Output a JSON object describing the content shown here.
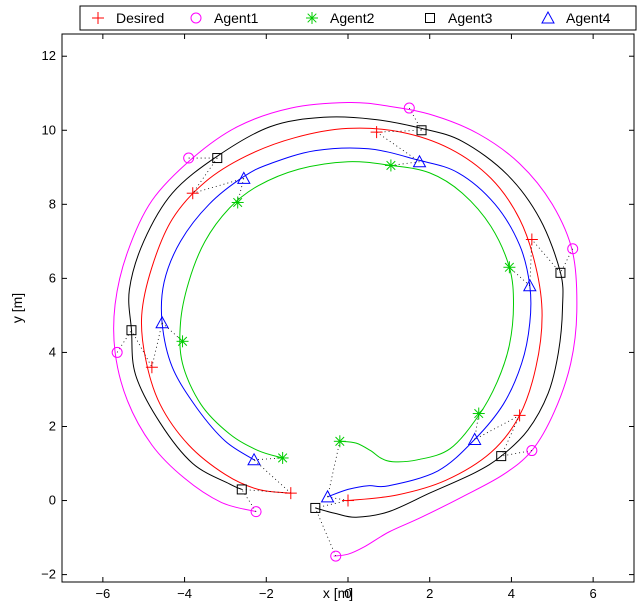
{
  "chart_data": {
    "type": "line",
    "xlabel": "x [m]",
    "ylabel": "y [m]",
    "xlim": [
      -7,
      7
    ],
    "ylim": [
      -2.2,
      12.6
    ],
    "xticks": [
      -6,
      -4,
      -2,
      0,
      2,
      4,
      6
    ],
    "yticks": [
      -2,
      0,
      2,
      4,
      6,
      8,
      10,
      12
    ],
    "grid": false,
    "legend_position": "top",
    "series": [
      {
        "name": "Desired",
        "color": "#ff0000",
        "marker": "plus",
        "path": [
          [
            0,
            0
          ],
          [
            1.2,
            0.15
          ],
          [
            2.4,
            0.55
          ],
          [
            3.5,
            1.3
          ],
          [
            4.2,
            2.3
          ],
          [
            4.6,
            3.6
          ],
          [
            4.75,
            5.0
          ],
          [
            4.6,
            6.3
          ],
          [
            4.2,
            7.6
          ],
          [
            3.5,
            8.7
          ],
          [
            2.5,
            9.5
          ],
          [
            1.3,
            9.95
          ],
          [
            0,
            10.05
          ],
          [
            -1.3,
            9.8
          ],
          [
            -2.5,
            9.3
          ],
          [
            -3.5,
            8.6
          ],
          [
            -4.3,
            7.6
          ],
          [
            -4.8,
            6.3
          ],
          [
            -5.05,
            5.0
          ],
          [
            -4.95,
            3.8
          ],
          [
            -4.6,
            2.6
          ],
          [
            -3.9,
            1.5
          ],
          [
            -3.0,
            0.7
          ],
          [
            -2.2,
            0.3
          ],
          [
            -1.4,
            0.2
          ]
        ],
        "markers": [
          [
            0,
            0
          ],
          [
            4.2,
            2.3
          ],
          [
            4.5,
            7.05
          ],
          [
            0.7,
            9.95
          ],
          [
            -3.8,
            8.3
          ],
          [
            -4.8,
            3.6
          ],
          [
            -1.4,
            0.2
          ]
        ]
      },
      {
        "name": "Agent1",
        "color": "#ff00ff",
        "marker": "circle",
        "path": [
          [
            -0.35,
            -1.5
          ],
          [
            0,
            -1.45
          ],
          [
            0.4,
            -1.25
          ],
          [
            1.0,
            -0.85
          ],
          [
            1.8,
            -0.45
          ],
          [
            2.8,
            0.1
          ],
          [
            3.8,
            0.7
          ],
          [
            4.5,
            1.35
          ],
          [
            5.05,
            2.4
          ],
          [
            5.45,
            3.7
          ],
          [
            5.6,
            5.1
          ],
          [
            5.5,
            6.7
          ],
          [
            5.0,
            8.0
          ],
          [
            4.2,
            9.1
          ],
          [
            3.2,
            9.9
          ],
          [
            2.1,
            10.4
          ],
          [
            1.0,
            10.65
          ],
          [
            0,
            10.75
          ],
          [
            -1.4,
            10.6
          ],
          [
            -2.7,
            10.1
          ],
          [
            -3.8,
            9.25
          ],
          [
            -4.8,
            8.1
          ],
          [
            -5.4,
            6.7
          ],
          [
            -5.7,
            5.3
          ],
          [
            -5.7,
            4.0
          ],
          [
            -5.4,
            2.7
          ],
          [
            -4.8,
            1.5
          ],
          [
            -4.0,
            0.6
          ],
          [
            -3.1,
            -0.05
          ],
          [
            -2.25,
            -0.3
          ]
        ],
        "markers": [
          [
            -0.3,
            -1.5
          ],
          [
            4.5,
            1.35
          ],
          [
            5.5,
            6.8
          ],
          [
            1.5,
            10.6
          ],
          [
            -3.9,
            9.25
          ],
          [
            -5.65,
            4.0
          ],
          [
            -2.25,
            -0.3
          ]
        ]
      },
      {
        "name": "Agent2",
        "color": "#00cc00",
        "marker": "asterisk",
        "path": [
          [
            -0.2,
            1.6
          ],
          [
            0.2,
            1.55
          ],
          [
            0.55,
            1.35
          ],
          [
            0.8,
            1.15
          ],
          [
            1.1,
            1.05
          ],
          [
            1.7,
            1.1
          ],
          [
            2.5,
            1.4
          ],
          [
            3.2,
            2.3
          ],
          [
            3.65,
            3.2
          ],
          [
            3.95,
            4.2
          ],
          [
            4.05,
            5.3
          ],
          [
            3.95,
            6.3
          ],
          [
            3.5,
            7.4
          ],
          [
            2.8,
            8.3
          ],
          [
            2.0,
            8.85
          ],
          [
            1.05,
            9.05
          ],
          [
            0,
            9.15
          ],
          [
            -1.2,
            8.95
          ],
          [
            -2.2,
            8.5
          ],
          [
            -2.9,
            7.9
          ],
          [
            -3.5,
            7.0
          ],
          [
            -3.9,
            5.9
          ],
          [
            -4.1,
            4.8
          ],
          [
            -4.05,
            3.7
          ],
          [
            -3.6,
            2.6
          ],
          [
            -2.9,
            1.8
          ],
          [
            -2.2,
            1.35
          ],
          [
            -1.6,
            1.15
          ]
        ],
        "markers": [
          [
            -0.2,
            1.6
          ],
          [
            3.2,
            2.35
          ],
          [
            3.95,
            6.3
          ],
          [
            1.05,
            9.05
          ],
          [
            -2.7,
            8.05
          ],
          [
            -4.05,
            4.3
          ],
          [
            -1.6,
            1.15
          ]
        ]
      },
      {
        "name": "Agent3",
        "color": "#000000",
        "marker": "square",
        "path": [
          [
            -0.8,
            -0.2
          ],
          [
            -0.3,
            -0.35
          ],
          [
            0.2,
            -0.45
          ],
          [
            1.0,
            -0.3
          ],
          [
            2.0,
            0.2
          ],
          [
            3.1,
            0.75
          ],
          [
            3.75,
            1.2
          ],
          [
            4.4,
            1.9
          ],
          [
            4.9,
            2.9
          ],
          [
            5.15,
            4.0
          ],
          [
            5.25,
            5.2
          ],
          [
            5.2,
            6.15
          ],
          [
            4.7,
            7.6
          ],
          [
            3.9,
            8.8
          ],
          [
            2.8,
            9.7
          ],
          [
            1.8,
            10.05
          ],
          [
            0.6,
            10.3
          ],
          [
            -0.6,
            10.35
          ],
          [
            -1.9,
            10.1
          ],
          [
            -3.2,
            9.3
          ],
          [
            -4.3,
            8.3
          ],
          [
            -5.0,
            7.0
          ],
          [
            -5.35,
            5.7
          ],
          [
            -5.3,
            4.6
          ],
          [
            -5.2,
            3.4
          ],
          [
            -4.6,
            2.1
          ],
          [
            -3.8,
            1.0
          ],
          [
            -2.9,
            0.45
          ],
          [
            -2.6,
            0.3
          ]
        ],
        "markers": [
          [
            -0.8,
            -0.2
          ],
          [
            3.75,
            1.2
          ],
          [
            5.2,
            6.15
          ],
          [
            1.8,
            10.0
          ],
          [
            -3.2,
            9.25
          ],
          [
            -5.3,
            4.6
          ],
          [
            -2.6,
            0.3
          ]
        ]
      },
      {
        "name": "Agent4",
        "color": "#0000ff",
        "marker": "triangle",
        "path": [
          [
            -0.5,
            0.1
          ],
          [
            0,
            0.3
          ],
          [
            0.5,
            0.4
          ],
          [
            1.0,
            0.4
          ],
          [
            2.2,
            0.8
          ],
          [
            3.1,
            1.65
          ],
          [
            3.8,
            2.6
          ],
          [
            4.25,
            3.7
          ],
          [
            4.45,
            4.8
          ],
          [
            4.45,
            5.8
          ],
          [
            4.2,
            6.9
          ],
          [
            3.6,
            8.0
          ],
          [
            2.7,
            8.85
          ],
          [
            1.7,
            9.2
          ],
          [
            0.5,
            9.5
          ],
          [
            -0.8,
            9.45
          ],
          [
            -1.9,
            9.1
          ],
          [
            -2.55,
            8.75
          ],
          [
            -3.4,
            8.0
          ],
          [
            -4.1,
            7.0
          ],
          [
            -4.5,
            5.9
          ],
          [
            -4.55,
            4.8
          ],
          [
            -4.3,
            3.6
          ],
          [
            -3.7,
            2.5
          ],
          [
            -3.0,
            1.6
          ],
          [
            -2.3,
            1.1
          ]
        ],
        "markers": [
          [
            -0.5,
            0.1
          ],
          [
            3.1,
            1.65
          ],
          [
            4.45,
            5.8
          ],
          [
            1.75,
            9.15
          ],
          [
            -2.55,
            8.7
          ],
          [
            -4.55,
            4.8
          ],
          [
            -2.3,
            1.1
          ]
        ]
      }
    ]
  }
}
